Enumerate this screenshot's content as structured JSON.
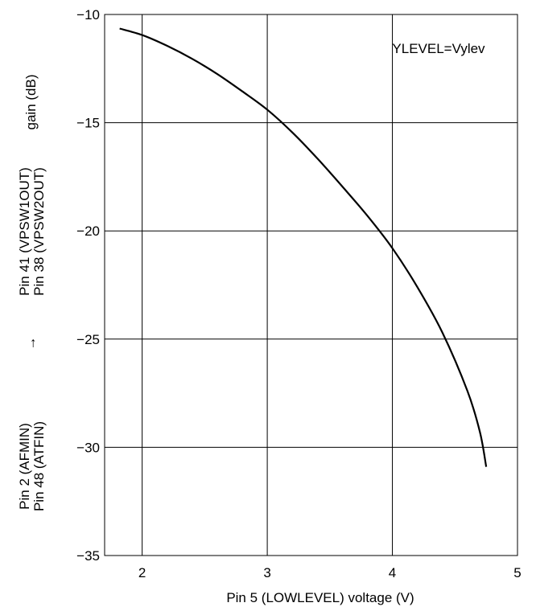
{
  "chart_data": {
    "type": "line",
    "title": "",
    "annotation": "YLEVEL=Vylev",
    "xlabel": "Pin 5 (LOWLEVEL) voltage (V)",
    "ylabel": {
      "line1_left": "Pin 2 (AFMIN)",
      "line2_left": "Pin 48 (ATFIN)",
      "arrow": "→",
      "line1_right": "Pin 41 (VPSW1OUT)",
      "line2_right": "Pin 38 (VPSW2OUT)",
      "unit": "gain (dB)"
    },
    "xlim": [
      1.7,
      5
    ],
    "ylim": [
      -35,
      -10
    ],
    "xticks": [
      2,
      3,
      4,
      5
    ],
    "xtick_labels": [
      "2",
      "3",
      "4",
      "5"
    ],
    "yticks": [
      -10,
      -15,
      -20,
      -25,
      -30,
      -35
    ],
    "ytick_labels": [
      "−10",
      "−15",
      "−20",
      "−25",
      "−30",
      "−35"
    ],
    "grid": true,
    "series": [
      {
        "x": [
          1.82,
          2.0,
          2.2,
          2.4,
          2.6,
          2.8,
          3.0,
          3.2,
          3.4,
          3.6,
          3.8,
          4.0,
          4.2,
          4.4,
          4.6,
          4.7,
          4.75
        ],
        "y": [
          -10.65,
          -10.95,
          -11.45,
          -12.05,
          -12.75,
          -13.55,
          -14.4,
          -15.45,
          -16.65,
          -17.95,
          -19.3,
          -20.8,
          -22.6,
          -24.7,
          -27.4,
          -29.3,
          -30.9
        ]
      }
    ],
    "colors": {
      "line": "#000000",
      "grid": "#000000",
      "frame": "#000000"
    }
  }
}
